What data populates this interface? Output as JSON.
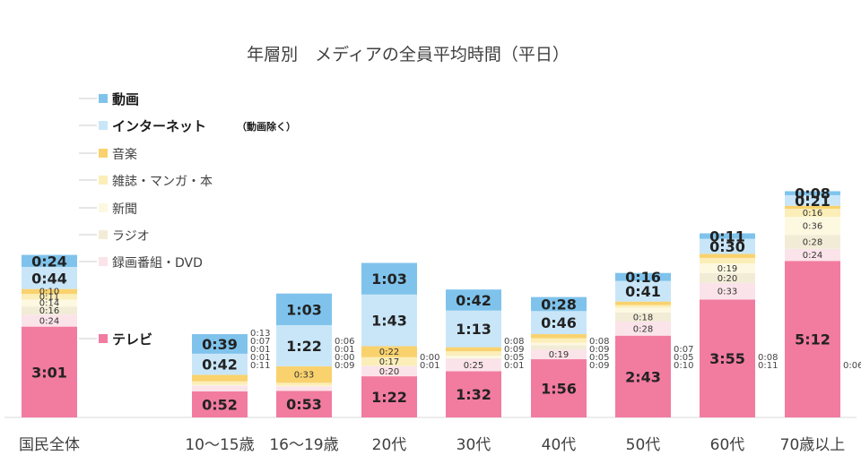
{
  "chart_data": {
    "type": "bar",
    "stacked": true,
    "title": "年層別　メディアの全員平均時間（平日）",
    "categories": [
      "国民全体",
      "10〜15歳",
      "16〜19歳",
      "20代",
      "30代",
      "40代",
      "50代",
      "60代",
      "70歳以上"
    ],
    "series": [
      {
        "key": "tv",
        "name": "テレビ",
        "color": "#f27ba0",
        "values": [
          "3:01",
          "0:52",
          "0:53",
          "1:22",
          "1:32",
          "1:56",
          "2:43",
          "3:55",
          "5:12"
        ]
      },
      {
        "key": "recorded",
        "name": "録画番組・DVD",
        "color": "#fbe3ea",
        "values": [
          "0:24",
          "0:11",
          "0:09",
          "0:20",
          "0:25",
          "0:19",
          "0:28",
          "0:33",
          "0:24"
        ]
      },
      {
        "key": "radio",
        "name": "ラジオ",
        "color": "#f2ecd7",
        "values": [
          "0:16",
          "0:01",
          "0:00",
          "0:01",
          "0:01",
          "0:09",
          "0:18",
          "0:20",
          "0:28"
        ]
      },
      {
        "key": "newspaper",
        "name": "新聞",
        "color": "#fdf8e0",
        "values": [
          "0:14",
          "0:01",
          "0:01",
          "0:00",
          "0:05",
          "0:05",
          "0:10",
          "0:19",
          "0:36"
        ]
      },
      {
        "key": "magazine",
        "name": "雑誌・マンガ・本",
        "color": "#fbeeb8",
        "values": [
          "0:11",
          "0:07",
          "0:06",
          "0:17",
          "0:09",
          "0:09",
          "0:05",
          "0:11",
          "0:16"
        ]
      },
      {
        "key": "music",
        "name": "音楽",
        "color": "#f9d26e",
        "values": [
          "0:10",
          "0:13",
          "0:33",
          "0:22",
          "0:08",
          "0:08",
          "0:07",
          "0:08",
          "0:06"
        ]
      },
      {
        "key": "internet",
        "name": "インターネット",
        "name_note": "（動画除く）",
        "color": "#c9e6f8",
        "values": [
          "0:44",
          "0:42",
          "1:22",
          "1:43",
          "1:13",
          "0:46",
          "0:41",
          "0:30",
          "0:21"
        ]
      },
      {
        "key": "video",
        "name": "動画",
        "color": "#7fc3ec",
        "values": [
          "0:24",
          "0:39",
          "1:03",
          "1:03",
          "0:42",
          "0:28",
          "0:16",
          "0:11",
          "0:08"
        ]
      }
    ]
  }
}
